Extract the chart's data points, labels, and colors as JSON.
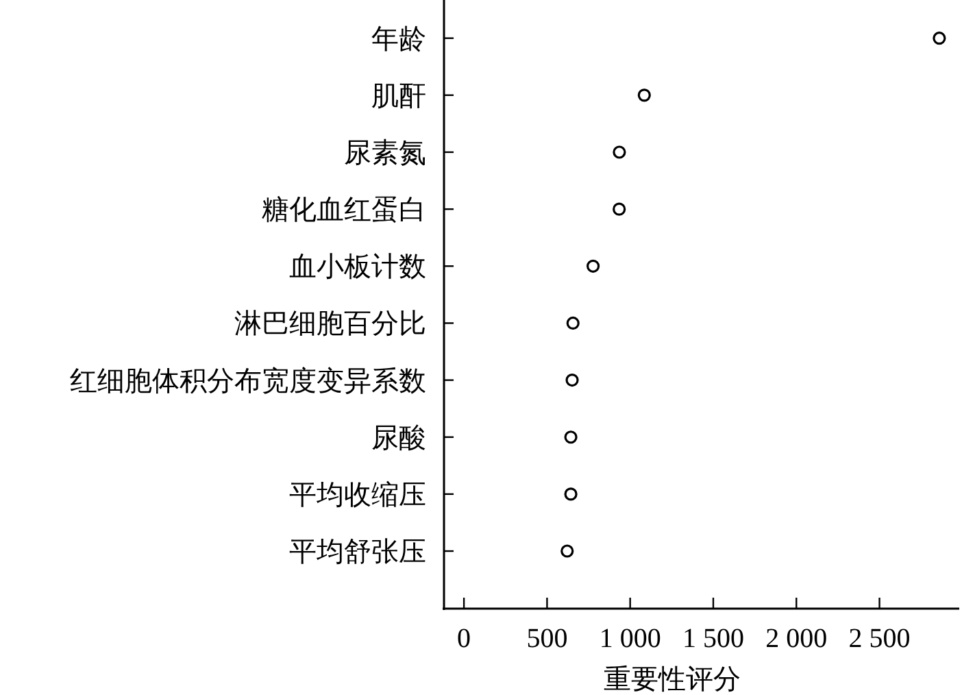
{
  "chart_data": {
    "type": "scatter",
    "orientation": "horizontal",
    "xlabel": "重要性评分",
    "categories": [
      "年龄",
      "肌酐",
      "尿素氮",
      "糖化血红蛋白",
      "血小板计数",
      "淋巴细胞百分比",
      "红细胞体积分布宽度变异系数",
      "尿酸",
      "平均收缩压",
      "平均舒张压"
    ],
    "series": [
      {
        "color": "#000000",
        "values": [
          2860,
          1085,
          935,
          934,
          777,
          656,
          651,
          643,
          643,
          621
        ]
      }
    ],
    "xlim": [
      -120,
      2980
    ],
    "xticks": [
      0,
      500,
      {
        "value": 1000,
        "label": "1 000"
      },
      {
        "value": 1500,
        "label": "1 500"
      },
      {
        "value": 2000,
        "label": "2 000"
      },
      {
        "value": 2500,
        "label": "2 500"
      }
    ],
    "marker": "circle"
  }
}
